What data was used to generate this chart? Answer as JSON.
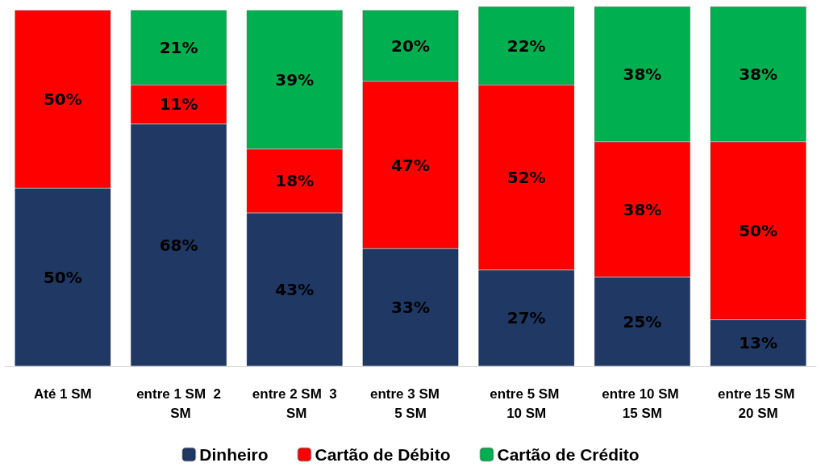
{
  "chart_data": {
    "type": "bar",
    "stacked": true,
    "legend": "bottom",
    "categories": [
      "Até 1 SM",
      "entre 1 SM  2 SM",
      "entre 2 SM  3 SM",
      "entre 3 SM   5 SM",
      "entre 5 SM 10 SM",
      "entre 10 SM 15 SM",
      "entre 15 SM 20 SM"
    ],
    "series": [
      {
        "name": "Dinheiro",
        "color": "#1f3864",
        "values": [
          50,
          68,
          43,
          33,
          27,
          25,
          13
        ],
        "value_labels": [
          "50%",
          "68%",
          "43%",
          "33%",
          "27%",
          "25%",
          "13%"
        ]
      },
      {
        "name": "Cartão de Débito",
        "color": "#ff0000",
        "values": [
          50,
          11,
          18,
          47,
          52,
          38,
          50
        ],
        "value_labels": [
          "50%",
          "11%",
          "18%",
          "47%",
          "52%",
          "38%",
          "50%"
        ]
      },
      {
        "name": "Cartão de Crédito",
        "color": "#00b050",
        "values": [
          null,
          21,
          39,
          20,
          22,
          38,
          38
        ],
        "value_labels": [
          null,
          "21%",
          "39%",
          "20%",
          "22%",
          "38%",
          "38%"
        ]
      }
    ]
  }
}
